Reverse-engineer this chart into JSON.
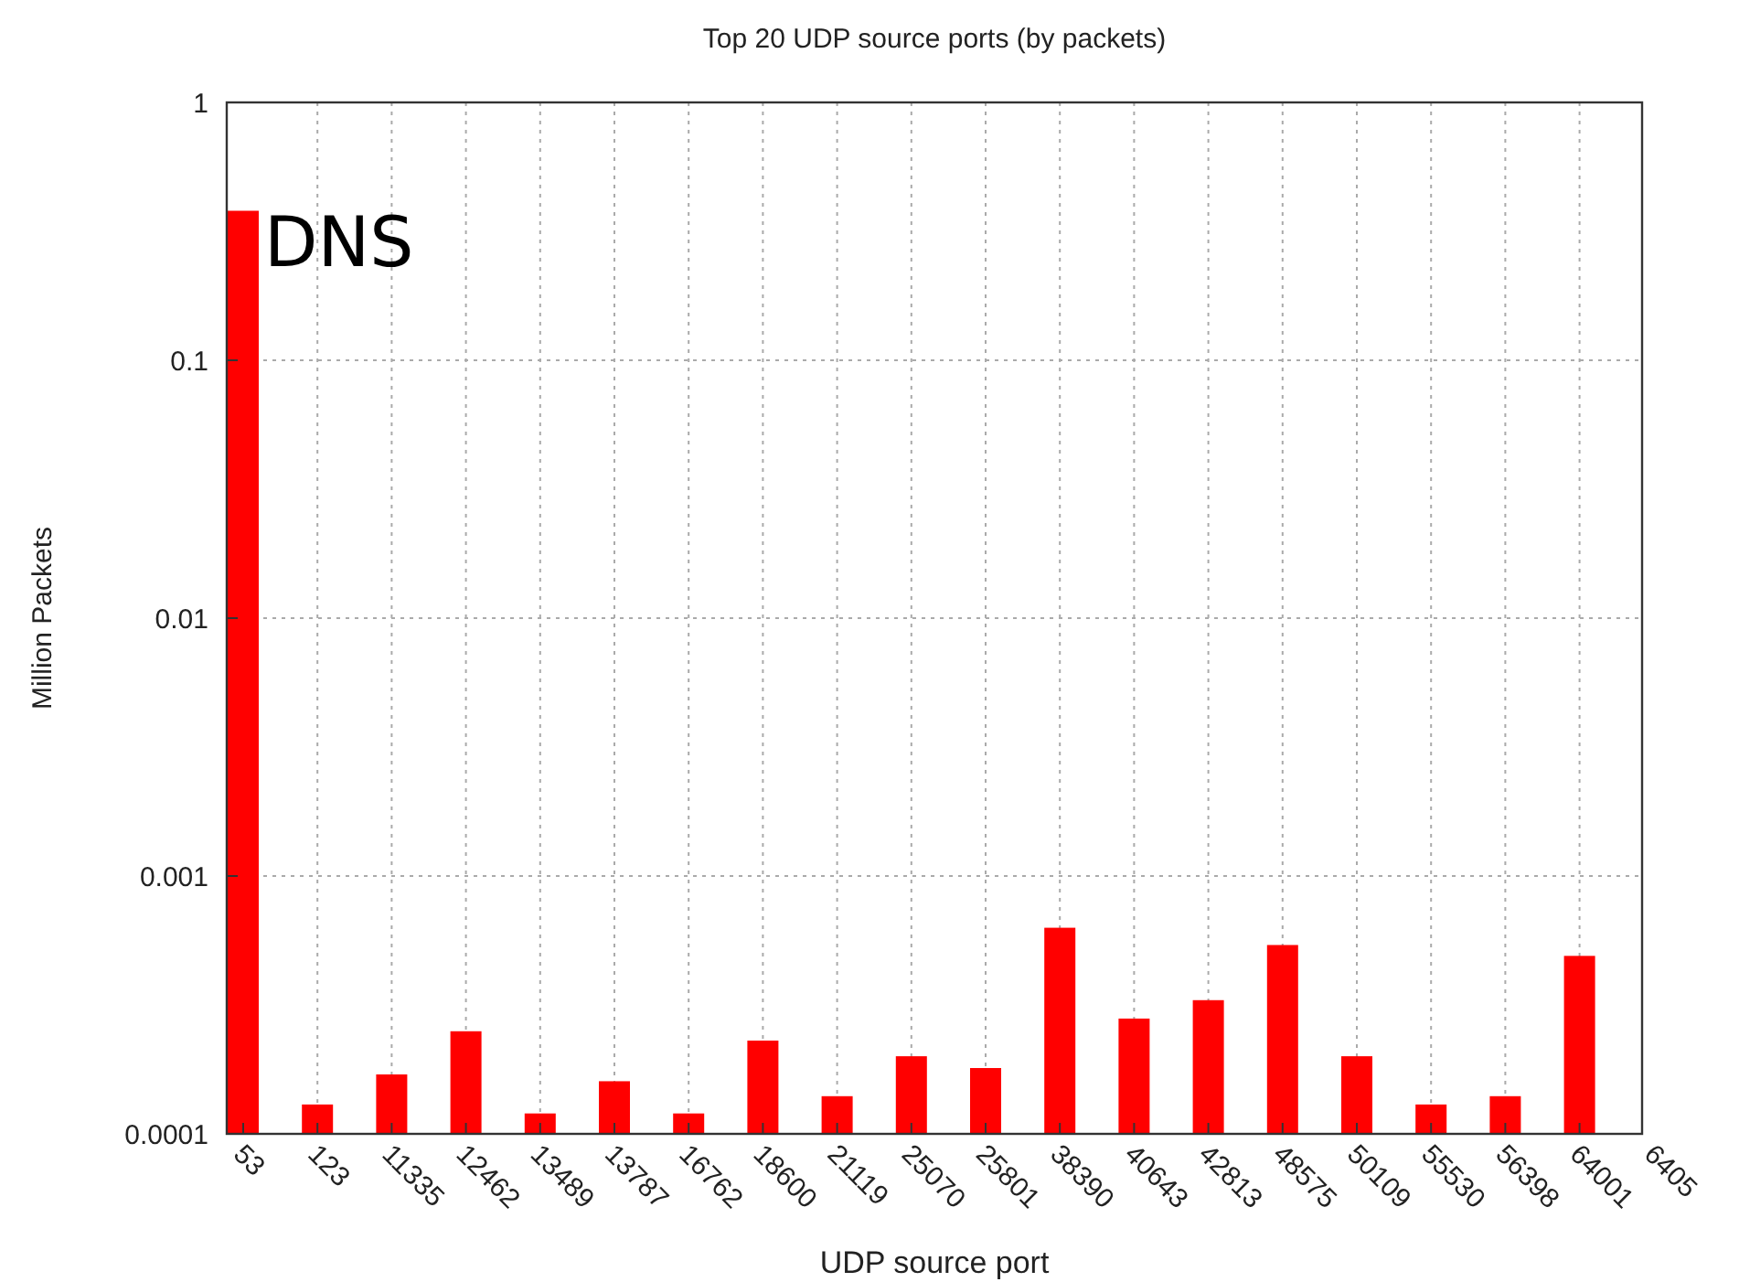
{
  "chart_data": {
    "type": "bar",
    "title": "Top 20 UDP source ports (by packets)",
    "xlabel": "UDP source port",
    "ylabel": "Million Packets",
    "categories": [
      "53",
      "123",
      "11335",
      "12462",
      "13489",
      "13787",
      "16762",
      "18600",
      "21119",
      "25070",
      "25801",
      "38390",
      "40643",
      "42813",
      "48575",
      "50109",
      "55530",
      "56398",
      "64001",
      "6405"
    ],
    "values": [
      0.38,
      0.00013,
      0.00017,
      0.00025,
      0.00012,
      0.00016,
      0.00012,
      0.00023,
      0.00014,
      0.0002,
      0.00018,
      0.00063,
      0.00028,
      0.00033,
      0.00054,
      0.0002,
      0.00013,
      0.00014,
      0.00049,
      null
    ],
    "color": "#ff0000",
    "log": true,
    "ylim": [
      0.0001,
      1
    ],
    "yticks": [
      0.0001,
      0.001,
      0.01,
      0.1,
      1
    ],
    "grid": true,
    "annotations": [
      {
        "text": "DNS",
        "x": "53",
        "y": 0.38
      }
    ]
  }
}
